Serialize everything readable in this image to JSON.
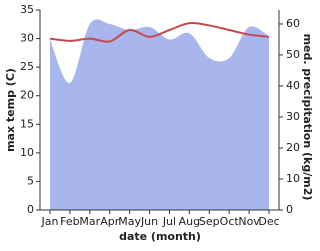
{
  "chart_data": {
    "type": "line-area",
    "xlabel": "date (month)",
    "ylabel": "max temp (C)",
    "y2label": "med. precipitation (kg/m2)",
    "categories": [
      "Jan",
      "Feb",
      "Mar",
      "Apr",
      "May",
      "Jun",
      "Jul",
      "Aug",
      "Sep",
      "Oct",
      "Nov",
      "Dec"
    ],
    "series": [
      {
        "name": "med. precipitation",
        "color": "#a9b6ee",
        "axis": "y2",
        "values": [
          55,
          41,
          60,
          60,
          58,
          59,
          55,
          57,
          49,
          49,
          59,
          56
        ]
      },
      {
        "name": "max temp",
        "color": "#c8484f",
        "values": [
          30,
          29.6,
          30,
          29.5,
          31.5,
          30.3,
          31.5,
          32.7,
          32.3,
          31.5,
          30.7,
          30.3
        ]
      }
    ],
    "ylim": [
      0,
      35
    ],
    "yticks": [
      0,
      5,
      10,
      15,
      20,
      25,
      30,
      35
    ],
    "y2lim": [
      0,
      64.5
    ],
    "y2ticks": [
      0,
      10,
      20,
      30,
      40,
      50,
      60
    ]
  }
}
